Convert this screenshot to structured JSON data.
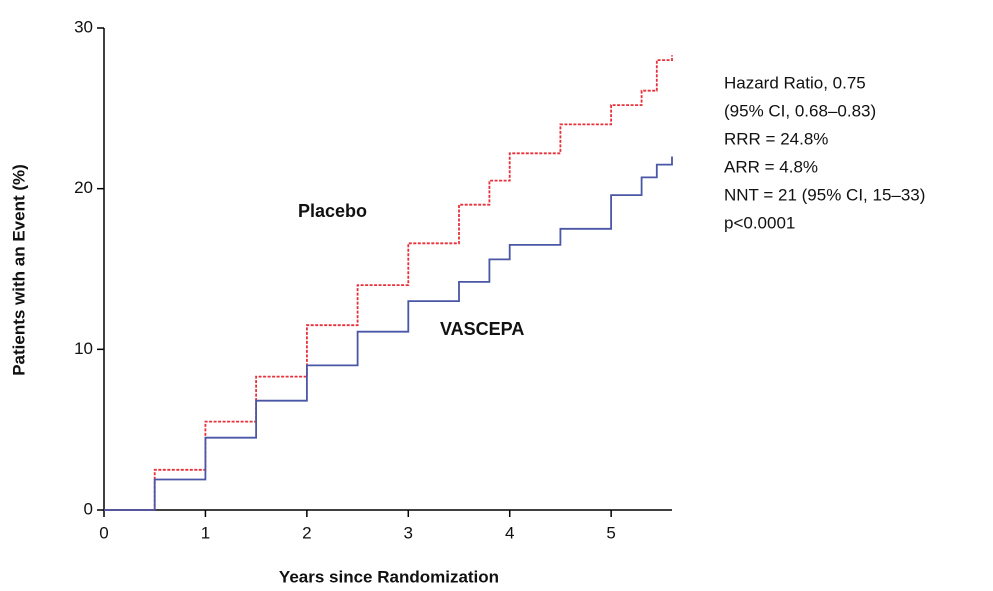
{
  "chart_data": {
    "type": "line",
    "xlabel": "Years since Randomization",
    "ylabel": "Patients with an Event (%)",
    "x": [
      0,
      0.5,
      1,
      1.5,
      2,
      2.5,
      3,
      3.5,
      3.8,
      4,
      4.5,
      5,
      5.3,
      5.45,
      5.6
    ],
    "series": [
      {
        "name": "Placebo",
        "color": "#e8303a",
        "values": [
          0,
          2.5,
          5.5,
          8.3,
          11.5,
          14,
          16.6,
          19,
          20.5,
          22.2,
          24,
          25.2,
          26.1,
          28,
          28.3
        ]
      },
      {
        "name": "VASCEPA",
        "color": "#4a56a6",
        "values": [
          0,
          1.9,
          4.5,
          6.8,
          9,
          11.1,
          13,
          14.2,
          15.6,
          16.5,
          17.5,
          19.6,
          20.7,
          21.5,
          22
        ]
      }
    ],
    "xlim": [
      0,
      5.6
    ],
    "ylim": [
      0,
      30
    ],
    "xticks": [
      0,
      1,
      2,
      3,
      4,
      5
    ],
    "yticks": [
      0,
      10,
      20,
      30
    ],
    "grid": false,
    "annotations": [
      "Hazard Ratio, 0.75",
      "(95% CI, 0.68–0.83)",
      "RRR = 24.8%",
      "ARR = 4.8%",
      "NNT = 21 (95% CI, 15–33)",
      "p<0.0001"
    ]
  }
}
